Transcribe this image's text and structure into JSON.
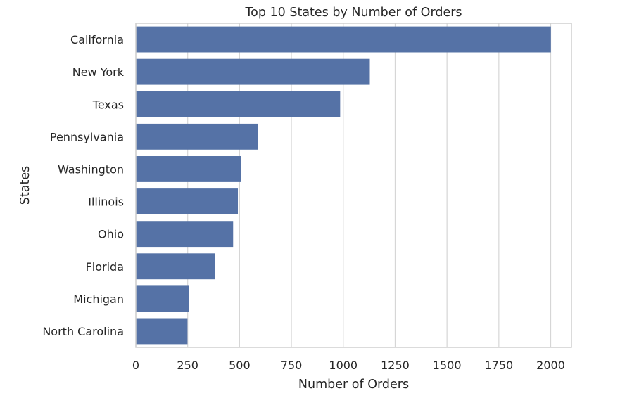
{
  "chart_data": {
    "type": "bar",
    "orientation": "horizontal",
    "title": "Top 10 States by Number of Orders",
    "xlabel": "Number of Orders",
    "ylabel": "States",
    "categories": [
      "California",
      "New York",
      "Texas",
      "Pennsylvania",
      "Washington",
      "Illinois",
      "Ohio",
      "Florida",
      "Michigan",
      "North Carolina"
    ],
    "values": [
      2001,
      1128,
      985,
      587,
      506,
      492,
      469,
      383,
      255,
      249
    ],
    "xlim": [
      0,
      2100
    ],
    "xticks": [
      0,
      250,
      500,
      750,
      1000,
      1250,
      1500,
      1750,
      2000
    ],
    "grid": true,
    "bar_color": "#5572a6",
    "grid_color": "#d6d6d6"
  }
}
